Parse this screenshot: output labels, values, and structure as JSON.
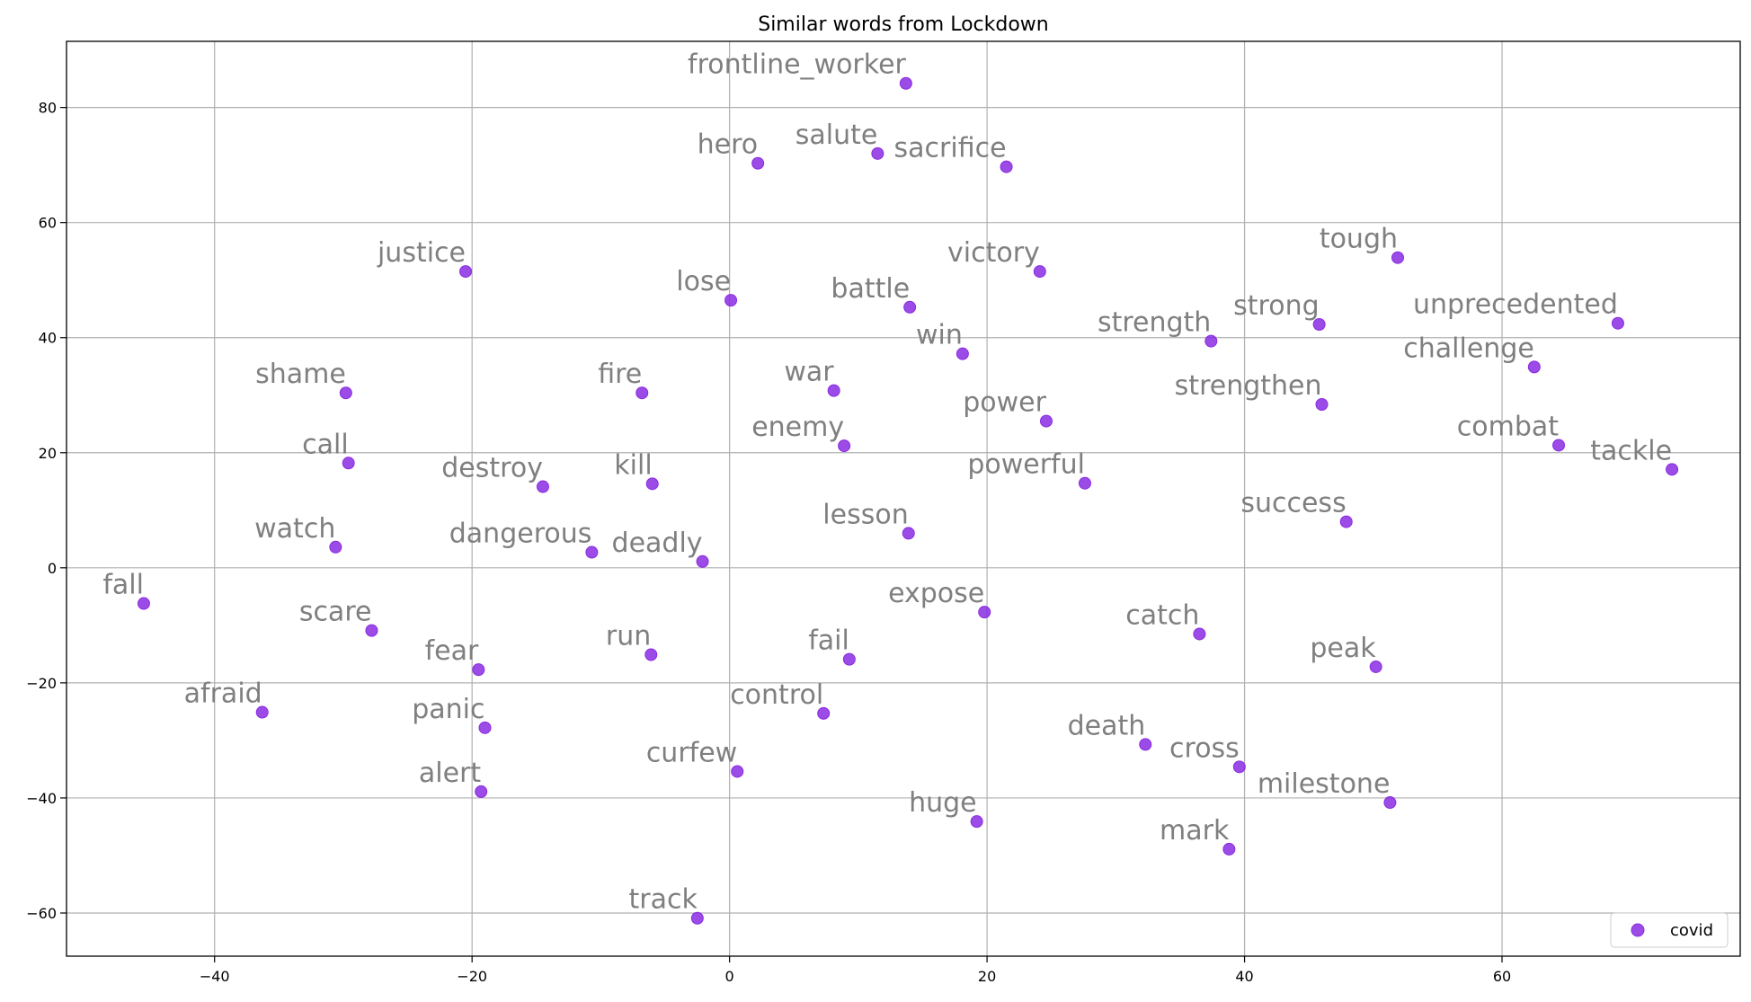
{
  "chart_data": {
    "type": "scatter",
    "title": "Similar words from Lockdown",
    "xlabel": "",
    "ylabel": "",
    "xlim": [
      -51.5,
      78.5
    ],
    "ylim": [
      -67.5,
      91.5
    ],
    "xticks": [
      -40,
      -20,
      0,
      20,
      40,
      60
    ],
    "yticks": [
      -60,
      -40,
      -20,
      0,
      20,
      40,
      60,
      80
    ],
    "grid": true,
    "legend": {
      "placement": "lower-right",
      "entries": [
        "covid"
      ]
    },
    "series": [
      {
        "name": "covid",
        "color": "#8a2be2",
        "points": [
          {
            "label": "frontline_worker",
            "x": 13.7,
            "y": 84.2
          },
          {
            "label": "hero",
            "x": 2.2,
            "y": 70.3
          },
          {
            "label": "salute",
            "x": 11.5,
            "y": 72.0
          },
          {
            "label": "sacrifice",
            "x": 21.5,
            "y": 69.7
          },
          {
            "label": "justice",
            "x": -20.5,
            "y": 51.5
          },
          {
            "label": "lose",
            "x": 0.1,
            "y": 46.5
          },
          {
            "label": "victory",
            "x": 24.1,
            "y": 51.5
          },
          {
            "label": "battle",
            "x": 14.0,
            "y": 45.3
          },
          {
            "label": "tough",
            "x": 51.9,
            "y": 53.9
          },
          {
            "label": "strong",
            "x": 45.8,
            "y": 42.3
          },
          {
            "label": "unprecedented",
            "x": 69.0,
            "y": 42.5
          },
          {
            "label": "strength",
            "x": 37.4,
            "y": 39.4
          },
          {
            "label": "win",
            "x": 18.1,
            "y": 37.2
          },
          {
            "label": "challenge",
            "x": 62.5,
            "y": 34.9
          },
          {
            "label": "shame",
            "x": -29.8,
            "y": 30.4
          },
          {
            "label": "fire",
            "x": -6.8,
            "y": 30.4
          },
          {
            "label": "war",
            "x": 8.1,
            "y": 30.8
          },
          {
            "label": "strengthen",
            "x": 46.0,
            "y": 28.4
          },
          {
            "label": "power",
            "x": 24.6,
            "y": 25.5
          },
          {
            "label": "enemy",
            "x": 8.9,
            "y": 21.2
          },
          {
            "label": "combat",
            "x": 64.4,
            "y": 21.3
          },
          {
            "label": "call",
            "x": -29.6,
            "y": 18.2
          },
          {
            "label": "tackle",
            "x": 73.2,
            "y": 17.1
          },
          {
            "label": "destroy",
            "x": -14.5,
            "y": 14.1
          },
          {
            "label": "kill",
            "x": -6.0,
            "y": 14.6
          },
          {
            "label": "powerful",
            "x": 27.6,
            "y": 14.7
          },
          {
            "label": "success",
            "x": 47.9,
            "y": 8.0
          },
          {
            "label": "lesson",
            "x": 13.9,
            "y": 6.0
          },
          {
            "label": "watch",
            "x": -30.6,
            "y": 3.6
          },
          {
            "label": "dangerous",
            "x": -10.7,
            "y": 2.7
          },
          {
            "label": "deadly",
            "x": -2.1,
            "y": 1.1
          },
          {
            "label": "fall",
            "x": -45.5,
            "y": -6.2
          },
          {
            "label": "expose",
            "x": 19.8,
            "y": -7.7
          },
          {
            "label": "scare",
            "x": -27.8,
            "y": -10.9
          },
          {
            "label": "catch",
            "x": 36.5,
            "y": -11.5
          },
          {
            "label": "run",
            "x": -6.1,
            "y": -15.1
          },
          {
            "label": "fail",
            "x": 9.3,
            "y": -15.9
          },
          {
            "label": "fear",
            "x": -19.5,
            "y": -17.7
          },
          {
            "label": "peak",
            "x": 50.2,
            "y": -17.2
          },
          {
            "label": "afraid",
            "x": -36.3,
            "y": -25.1
          },
          {
            "label": "control",
            "x": 7.3,
            "y": -25.3
          },
          {
            "label": "panic",
            "x": -19.0,
            "y": -27.8
          },
          {
            "label": "death",
            "x": 32.3,
            "y": -30.7
          },
          {
            "label": "cross",
            "x": 39.6,
            "y": -34.6
          },
          {
            "label": "curfew",
            "x": 0.6,
            "y": -35.4
          },
          {
            "label": "alert",
            "x": -19.3,
            "y": -38.9
          },
          {
            "label": "milestone",
            "x": 51.3,
            "y": -40.8
          },
          {
            "label": "huge",
            "x": 19.2,
            "y": -44.1
          },
          {
            "label": "mark",
            "x": 38.8,
            "y": -48.9
          },
          {
            "label": "track",
            "x": -2.5,
            "y": -60.9
          }
        ]
      }
    ]
  }
}
